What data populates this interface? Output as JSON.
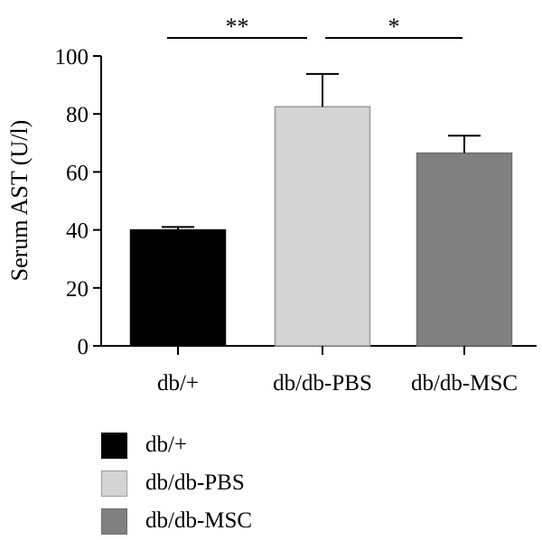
{
  "chart_data": {
    "type": "bar",
    "categories": [
      "db/+",
      "db/db-PBS",
      "db/db-MSC"
    ],
    "values": [
      40,
      82.5,
      66.5
    ],
    "errors": [
      1.0,
      11.3,
      6.0
    ],
    "colors": [
      "#000000",
      "#d4d4d4",
      "#808080"
    ],
    "edge_colors": [
      "#000000",
      "#9a9a9a",
      "#6e6e6e"
    ],
    "ylabel": "Serum AST (U/l)",
    "ylim": [
      0,
      100
    ],
    "yticks": [
      0,
      20,
      40,
      60,
      80,
      100
    ],
    "legend_position": "bottom-left",
    "significance": [
      {
        "from": 0,
        "to": 1,
        "label": "**"
      },
      {
        "from": 1,
        "to": 2,
        "label": "*"
      }
    ]
  },
  "legend": {
    "items": [
      {
        "label": "db/+",
        "color": "#000000",
        "border": "#000000"
      },
      {
        "label": "db/db-PBS",
        "color": "#d4d4d4",
        "border": "#9a9a9a"
      },
      {
        "label": "db/db-MSC",
        "color": "#808080",
        "border": "#6e6e6e"
      }
    ]
  }
}
